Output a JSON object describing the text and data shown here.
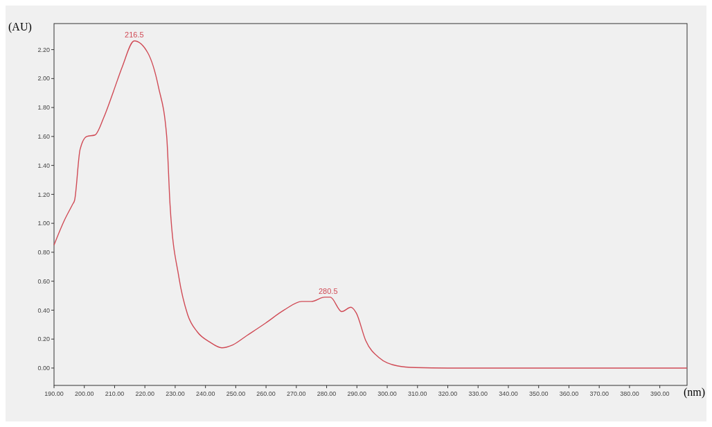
{
  "chart_data": {
    "type": "line",
    "xlabel": "(nm)",
    "ylabel": "(AU)",
    "xlim": [
      190,
      399
    ],
    "ylim": [
      -0.12,
      2.38
    ],
    "xticks": [
      {
        "value": 190,
        "label": "190.00"
      },
      {
        "value": 200,
        "label": "200.00"
      },
      {
        "value": 210,
        "label": "210.00"
      },
      {
        "value": 220,
        "label": "220.00"
      },
      {
        "value": 230,
        "label": "230.00"
      },
      {
        "value": 240,
        "label": "240.00"
      },
      {
        "value": 250,
        "label": "250.00"
      },
      {
        "value": 260,
        "label": "260.00"
      },
      {
        "value": 270,
        "label": "270.00"
      },
      {
        "value": 280,
        "label": "280.00"
      },
      {
        "value": 290,
        "label": "290.00"
      },
      {
        "value": 300,
        "label": "300.00"
      },
      {
        "value": 310,
        "label": "310.00"
      },
      {
        "value": 320,
        "label": "320.00"
      },
      {
        "value": 330,
        "label": "330.00"
      },
      {
        "value": 340,
        "label": "340.00"
      },
      {
        "value": 350,
        "label": "350.00"
      },
      {
        "value": 360,
        "label": "360.00"
      },
      {
        "value": 370,
        "label": "370.00"
      },
      {
        "value": 380,
        "label": "380.00"
      },
      {
        "value": 390,
        "label": "390.00"
      }
    ],
    "yticks": [
      {
        "value": 0,
        "label": "0.00"
      },
      {
        "value": 0.2,
        "label": "0.20"
      },
      {
        "value": 0.4,
        "label": "0.40"
      },
      {
        "value": 0.6,
        "label": "0.60"
      },
      {
        "value": 0.8,
        "label": "0.80"
      },
      {
        "value": 1,
        "label": "1.00"
      },
      {
        "value": 1.2,
        "label": "1.20"
      },
      {
        "value": 1.4,
        "label": "1.40"
      },
      {
        "value": 1.6,
        "label": "1.60"
      },
      {
        "value": 1.8,
        "label": "1.80"
      },
      {
        "value": 2,
        "label": "2.00"
      },
      {
        "value": 2.2,
        "label": "2.20"
      }
    ],
    "grid": false,
    "series": [
      {
        "color": "#d04a55",
        "x": [
          190,
          193.4,
          196.1,
          196.8,
          198.6,
          200.8,
          203.5,
          206.4,
          209.6,
          212.5,
          216.5,
          220.9,
          224.5,
          227.2,
          228.3,
          231.2,
          234.1,
          237.3,
          241.4,
          245.4,
          249,
          253.7,
          259.8,
          265.9,
          271.8,
          274.9,
          279.4,
          281.2,
          285,
          288,
          289.8,
          292.9,
          297.4,
          303.3,
          309.4,
          320,
          340,
          360,
          380,
          399
        ],
        "values": [
          0.85,
          1.02,
          1.13,
          1.16,
          1.51,
          1.6,
          1.61,
          1.73,
          1.91,
          2.08,
          2.26,
          2.18,
          1.94,
          1.6,
          1.13,
          0.63,
          0.37,
          0.25,
          0.18,
          0.14,
          0.16,
          0.225,
          0.31,
          0.4,
          0.46,
          0.46,
          0.49,
          0.49,
          0.39,
          0.42,
          0.38,
          0.19,
          0.07,
          0.015,
          0.003,
          0,
          0,
          0,
          0,
          0
        ]
      }
    ],
    "annotations": [
      {
        "text": "216.5",
        "x": 216.5,
        "y": 2.26
      },
      {
        "text": "280.5",
        "x": 280.5,
        "y": 0.49
      }
    ]
  }
}
